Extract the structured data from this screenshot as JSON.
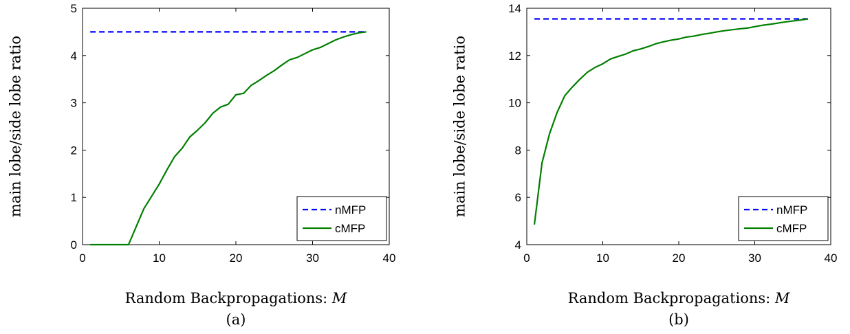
{
  "chart_data": [
    {
      "type": "line",
      "panel_label": "(a)",
      "xlabel": "Random Backpropagations: ",
      "xlabel_var": "M",
      "ylabel": "main lobe/side lobe ratio",
      "xlim": [
        0,
        40
      ],
      "ylim": [
        0,
        5
      ],
      "xticks": [
        "0",
        "10",
        "20",
        "30",
        "40"
      ],
      "yticks": [
        "0",
        "1",
        "2",
        "3",
        "4",
        "5"
      ],
      "grid": false,
      "legend_position": "bottom-right",
      "series": [
        {
          "name": "nMFP",
          "color": "#0000ff",
          "style": "dashed",
          "x": [
            1,
            37
          ],
          "y": [
            4.5,
            4.5
          ]
        },
        {
          "name": "cMFP",
          "color": "#007f00",
          "style": "solid",
          "x": [
            1,
            2,
            3,
            4,
            5,
            6,
            7,
            8,
            9,
            10,
            11,
            12,
            13,
            14,
            15,
            16,
            17,
            18,
            19,
            20,
            21,
            22,
            23,
            24,
            25,
            26,
            27,
            28,
            29,
            30,
            31,
            32,
            33,
            34,
            35,
            36,
            37
          ],
          "y": [
            0,
            0,
            0,
            0,
            0,
            0,
            0.38,
            0.76,
            1.02,
            1.28,
            1.58,
            1.86,
            2.04,
            2.28,
            2.42,
            2.58,
            2.78,
            2.91,
            2.97,
            3.17,
            3.2,
            3.37,
            3.47,
            3.58,
            3.68,
            3.8,
            3.91,
            3.96,
            4.04,
            4.12,
            4.17,
            4.25,
            4.33,
            4.39,
            4.44,
            4.48,
            4.5
          ]
        }
      ]
    },
    {
      "type": "line",
      "panel_label": "(b)",
      "xlabel": "Random Backpropagations: ",
      "xlabel_var": "M",
      "ylabel": "main lobe/side lobe ratio",
      "xlim": [
        0,
        40
      ],
      "ylim": [
        4,
        14
      ],
      "xticks": [
        "0",
        "10",
        "20",
        "30",
        "40"
      ],
      "yticks": [
        "4",
        "6",
        "8",
        "10",
        "12",
        "14"
      ],
      "grid": false,
      "legend_position": "bottom-right",
      "series": [
        {
          "name": "nMFP",
          "color": "#0000ff",
          "style": "dashed",
          "x": [
            1,
            37
          ],
          "y": [
            13.55,
            13.55
          ]
        },
        {
          "name": "cMFP",
          "color": "#007f00",
          "style": "solid",
          "x": [
            1,
            2,
            3,
            4,
            5,
            6,
            7,
            8,
            9,
            10,
            11,
            12,
            13,
            14,
            15,
            16,
            17,
            18,
            19,
            20,
            21,
            22,
            23,
            24,
            25,
            26,
            27,
            28,
            29,
            30,
            31,
            32,
            33,
            34,
            35,
            36,
            37
          ],
          "y": [
            4.85,
            7.45,
            8.7,
            9.6,
            10.3,
            10.67,
            11.0,
            11.3,
            11.5,
            11.65,
            11.85,
            11.96,
            12.06,
            12.2,
            12.28,
            12.38,
            12.5,
            12.58,
            12.65,
            12.7,
            12.78,
            12.82,
            12.89,
            12.94,
            13.0,
            13.05,
            13.09,
            13.13,
            13.16,
            13.22,
            13.28,
            13.32,
            13.37,
            13.42,
            13.46,
            13.5,
            13.55
          ]
        }
      ]
    }
  ]
}
